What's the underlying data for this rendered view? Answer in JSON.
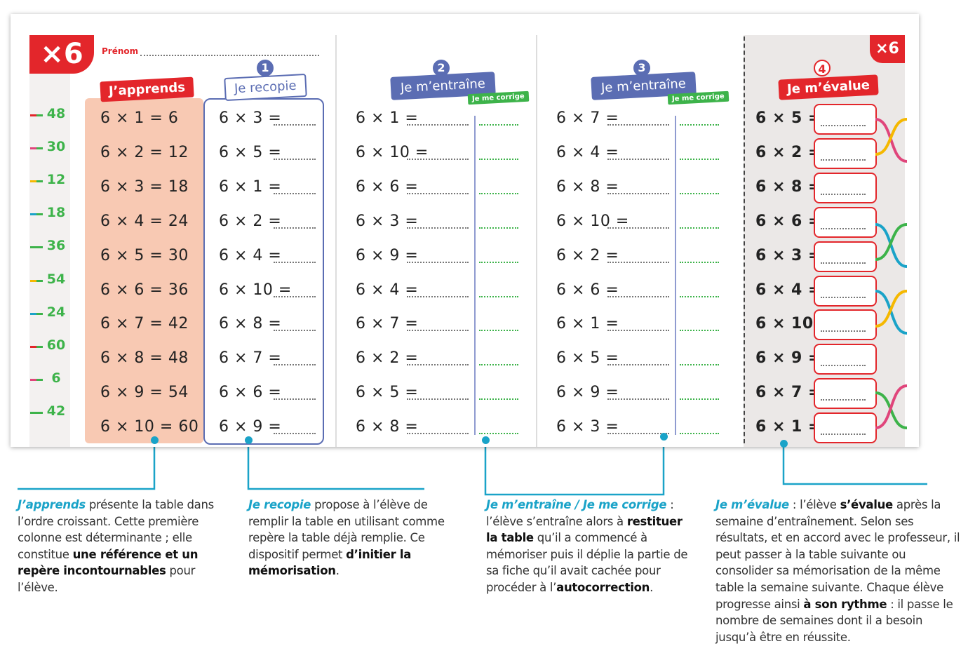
{
  "sheet": {
    "badge": "×6",
    "badge_right": "×6",
    "prenom": "Prénom",
    "side_numbers": [
      "48",
      "30",
      "12",
      "18",
      "36",
      "54",
      "24",
      "60",
      "6",
      "42"
    ],
    "sections": [
      {
        "title": "J’apprends",
        "rows": [
          "6 × 1 = 6",
          "6 × 2 = 12",
          "6 × 3 = 18",
          "6 × 4 = 24",
          "6 × 5 = 30",
          "6 × 6 = 36",
          "6 × 7 = 42",
          "6 × 8 = 48",
          "6 × 9 = 54",
          "6 × 10 = 60"
        ]
      },
      {
        "step": "1",
        "title": "Je recopie",
        "rows": [
          "6 × 3 =",
          "6 × 5 =",
          "6 × 1 =",
          "6 × 2 =",
          "6 × 4 =",
          "6 × 10 =",
          "6 × 8 =",
          "6 × 7 =",
          "6 × 6 =",
          "6 × 9 ="
        ]
      },
      {
        "step": "2",
        "title": "Je m’entraîne",
        "subtitle": "Je me corrige",
        "rows": [
          "6 × 1 =",
          "6 × 10 =",
          "6 × 6 =",
          "6 × 3 =",
          "6 × 9 =",
          "6 × 4 =",
          "6 × 7 =",
          "6 × 2 =",
          "6 × 5 =",
          "6 × 8 ="
        ]
      },
      {
        "step": "3",
        "title": "Je m’entraîne",
        "subtitle": "Je me corrige",
        "rows": [
          "6 × 7 =",
          "6 × 4 =",
          "6 × 8 =",
          "6 × 10 =",
          "6 × 2 =",
          "6 × 6 =",
          "6 × 1 =",
          "6 × 5 =",
          "6 × 9 =",
          "6 × 3 ="
        ]
      },
      {
        "step": "4",
        "title": "Je m’évalue",
        "rows": [
          "6 × 5 =",
          "6 × 2 =",
          "6 × 8 =",
          "6 × 6 =",
          "6 × 3 =",
          "6 × 4 =",
          "6 × 10 =",
          "6 × 9 =",
          "6 × 7 =",
          "6 × 1 ="
        ]
      }
    ]
  },
  "captions": [
    [
      {
        "text": "J’apprends",
        "style": "lead"
      },
      {
        "text": " présente la table dans l’ordre croissant. Cette première colonne est déterminante ; elle constitue "
      },
      {
        "text": "une référence et un repère incontournables",
        "style": "bold"
      },
      {
        "text": " pour l’élève."
      }
    ],
    [
      {
        "text": "Je recopie",
        "style": "lead"
      },
      {
        "text": " propose à l’élève de remplir la table en utilisant comme repère la table déjà remplie. Ce dispositif permet "
      },
      {
        "text": "d’initier la mémorisation",
        "style": "bold"
      },
      {
        "text": "."
      }
    ],
    [
      {
        "text": "Je m’entraîne / Je me corrige",
        "style": "lead"
      },
      {
        "text": " : l’élève s’entraîne alors à "
      },
      {
        "text": "restituer la table",
        "style": "bold"
      },
      {
        "text": " qu’il a commencé à mémoriser puis il déplie la partie de sa fiche qu’il avait cachée pour procéder à l’"
      },
      {
        "text": "autocorrection",
        "style": "bold"
      },
      {
        "text": "."
      }
    ],
    [
      {
        "text": "Je m’évalue",
        "style": "lead"
      },
      {
        "text": " : l’élève "
      },
      {
        "text": "s’évalue",
        "style": "bold"
      },
      {
        "text": " après la semaine d’entraînement. Selon ses résultats, et en accord avec le professeur, il peut passer à la table suivante ou consolider sa mémorisation de la même table la semaine suivante. Chaque élève progresse ainsi "
      },
      {
        "text": "à son rythme",
        "style": "bold"
      },
      {
        "text": " : il passe le nombre de semaines dont il a besoin jusqu’à être en réussite."
      }
    ]
  ]
}
